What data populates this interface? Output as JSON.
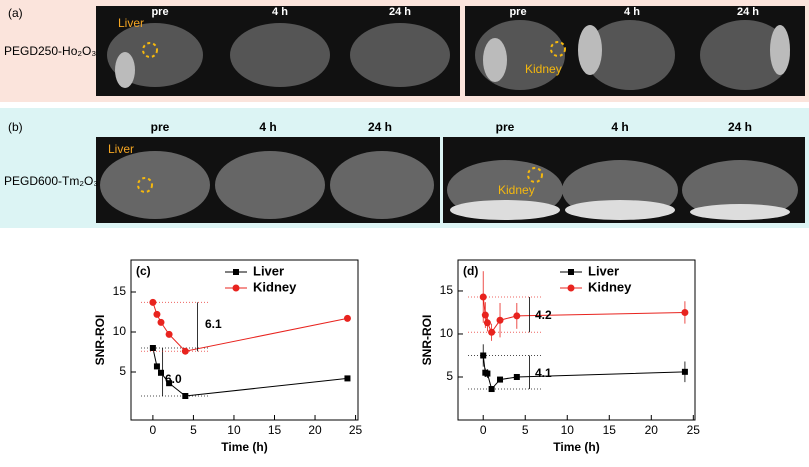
{
  "panels": [
    {
      "label": "(a)",
      "sample": "PEGD250-Ho₂O₃",
      "times": [
        "pre",
        "4 h",
        "24 h"
      ],
      "organs": [
        "Liver",
        "Kidney"
      ]
    },
    {
      "label": "(b)",
      "sample": "PEGD600-Tm₂O₃",
      "times": [
        "pre",
        "4 h",
        "24 h"
      ],
      "organs": [
        "Liver",
        "Kidney"
      ]
    }
  ],
  "chart_data": [
    {
      "type": "line",
      "title": "(c)",
      "x_label": "Time (h)",
      "y_label": "SNR-ROI",
      "xlim": [
        -2.7,
        25.3
      ],
      "ylim": [
        -1,
        19
      ],
      "xticks": [
        0,
        5,
        10,
        15,
        20,
        25
      ],
      "yticks": [
        5,
        10,
        15
      ],
      "annotations": [
        "6.1",
        "6.0"
      ],
      "series": [
        {
          "name": "Liver",
          "color": "#000000",
          "marker": "square",
          "x": [
            0,
            0.5,
            1,
            2,
            4,
            24
          ],
          "values": [
            8.0,
            5.7,
            4.9,
            3.6,
            2.0,
            4.2
          ]
        },
        {
          "name": "Kidney",
          "color": "#e8231e",
          "marker": "circle",
          "x": [
            0,
            0.5,
            1,
            2,
            4,
            24
          ],
          "values": [
            13.7,
            12.2,
            11.2,
            9.7,
            7.6,
            11.7
          ]
        }
      ]
    },
    {
      "type": "line",
      "title": "(d)",
      "x_label": "Time (h)",
      "y_label": "SNR-ROI",
      "xlim": [
        -3,
        25.2
      ],
      "ylim": [
        0,
        18.6
      ],
      "xticks": [
        0,
        5,
        10,
        15,
        20,
        25
      ],
      "yticks": [
        5,
        10,
        15
      ],
      "annotations": [
        "4.2",
        "4.1"
      ],
      "series": [
        {
          "name": "Liver",
          "color": "#000000",
          "marker": "square",
          "x": [
            0,
            0.25,
            0.5,
            1,
            2,
            4,
            24
          ],
          "values": [
            7.5,
            5.5,
            5.4,
            3.6,
            4.7,
            5.0,
            5.6
          ],
          "errors": [
            1.3,
            0.5,
            0.5,
            0.3,
            0.3,
            0.3,
            1.2
          ]
        },
        {
          "name": "Kidney",
          "color": "#e8231e",
          "marker": "circle",
          "x": [
            0,
            0.25,
            0.5,
            1,
            2,
            4,
            24
          ],
          "values": [
            14.3,
            12.2,
            11.3,
            10.2,
            11.6,
            12.1,
            12.5
          ],
          "errors": [
            3.0,
            1.5,
            1.0,
            1.0,
            2.0,
            1.5,
            1.3
          ]
        }
      ]
    }
  ]
}
